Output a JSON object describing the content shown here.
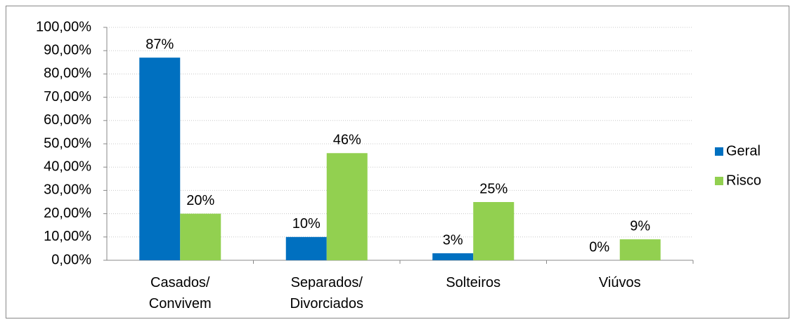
{
  "chart_data": {
    "type": "bar",
    "categories": [
      "Casados/\nConvivem",
      "Separados/\nDivorciados",
      "Solteiros",
      "Viúvos"
    ],
    "series": [
      {
        "name": "Geral",
        "color": "#0070c0",
        "values": [
          87,
          10,
          3,
          0
        ],
        "value_labels": [
          "87%",
          "10%",
          "3%",
          "0%"
        ]
      },
      {
        "name": "Risco",
        "color": "#92d050",
        "values": [
          20,
          46,
          25,
          9
        ],
        "value_labels": [
          "20%",
          "46%",
          "25%",
          "9%"
        ]
      }
    ],
    "ylim": [
      0,
      100
    ],
    "yticks": [
      {
        "value": 0,
        "label": "0,00%"
      },
      {
        "value": 10,
        "label": "10,00%"
      },
      {
        "value": 20,
        "label": "20,00%"
      },
      {
        "value": 30,
        "label": "30,00%"
      },
      {
        "value": 40,
        "label": "40,00%"
      },
      {
        "value": 50,
        "label": "50,00%"
      },
      {
        "value": 60,
        "label": "60,00%"
      },
      {
        "value": 70,
        "label": "70,00%"
      },
      {
        "value": 80,
        "label": "80,00%"
      },
      {
        "value": 90,
        "label": "90,00%"
      },
      {
        "value": 100,
        "label": "100,00%"
      }
    ],
    "grid": true,
    "legend": "right"
  }
}
